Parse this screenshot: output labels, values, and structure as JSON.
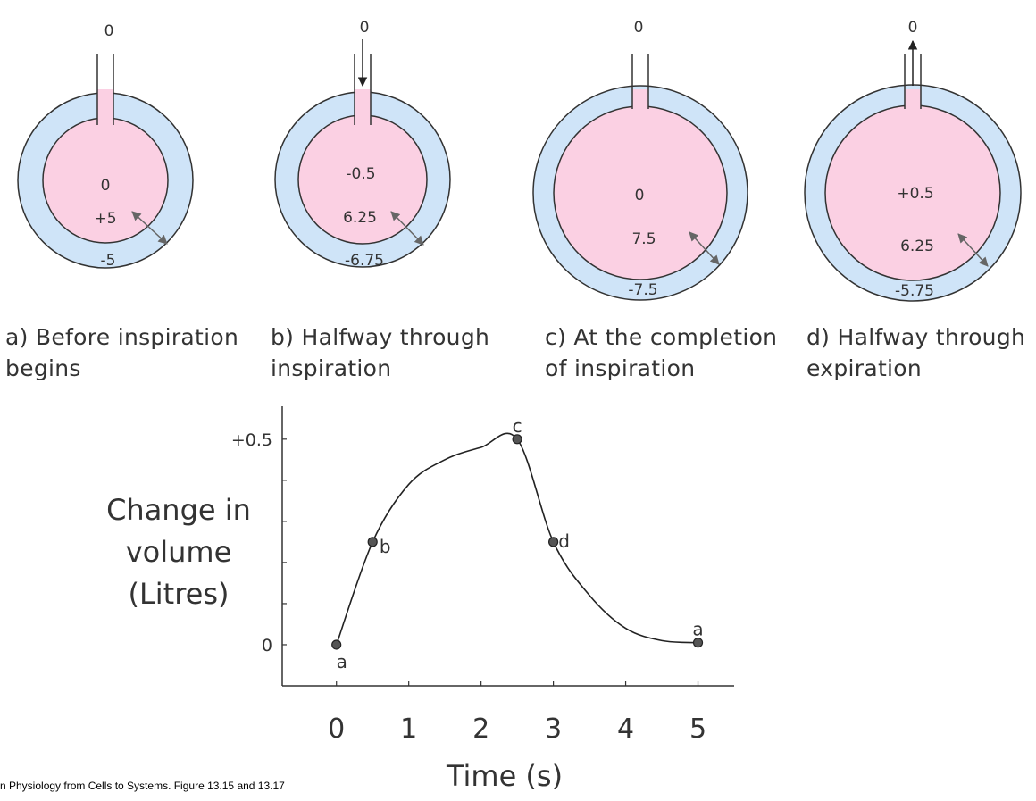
{
  "panels": [
    {
      "id": "a",
      "caption_line1": "a) Before inspiration",
      "caption_line2": "begins",
      "outside": "0",
      "alveolar": "0",
      "intrapleural": "+5",
      "recoil": "-5"
    },
    {
      "id": "b",
      "caption_line1": "b) Halfway through",
      "caption_line2": "inspiration",
      "outside": "0",
      "alveolar": "-0.5",
      "intrapleural": "6.25",
      "recoil": "-6.75"
    },
    {
      "id": "c",
      "caption_line1": "c) At the completion",
      "caption_line2": "of inspiration",
      "outside": "0",
      "alveolar": "0",
      "intrapleural": "7.5",
      "recoil": "-7.5"
    },
    {
      "id": "d",
      "caption_line1": "d) Halfway through",
      "caption_line2": "expiration",
      "outside": "0",
      "alveolar": "+0.5",
      "intrapleural": "6.25",
      "recoil": "-5.75"
    }
  ],
  "colors": {
    "lung": "#fbd0e3",
    "lung_dark": "#f7b5d2",
    "pleura": "#cfe4f8",
    "pleura_dark": "#b8d6f2",
    "ink": "#333333",
    "arrow": "#666666"
  },
  "chart_data": {
    "type": "line",
    "xlabel": "Time (s)",
    "ylabel_lines": [
      "Change in",
      "volume",
      "(Litres)"
    ],
    "x_ticks": [
      "0",
      "1",
      "2",
      "3",
      "4",
      "5"
    ],
    "y_ticks": [
      "0",
      "+0.5"
    ],
    "xlim": [
      -0.75,
      5.5
    ],
    "ylim": [
      -0.1,
      0.58
    ],
    "series": [
      {
        "name": "volume",
        "x": [
          0,
          0.5,
          1,
          1.5,
          2,
          2.5,
          3,
          3.5,
          4,
          4.5,
          5
        ],
        "y": [
          0,
          0.25,
          0.39,
          0.45,
          0.48,
          0.5,
          0.25,
          0.12,
          0.04,
          0.01,
          0.005
        ]
      }
    ],
    "points": [
      {
        "label": "a",
        "x": 0,
        "y": 0
      },
      {
        "label": "b",
        "x": 0.5,
        "y": 0.25
      },
      {
        "label": "c",
        "x": 2.5,
        "y": 0.5
      },
      {
        "label": "d",
        "x": 3,
        "y": 0.25
      },
      {
        "label": "a",
        "x": 5,
        "y": 0.005
      }
    ]
  },
  "source": "n Physiology from Cells to Systems. Figure 13.15 and 13.17"
}
